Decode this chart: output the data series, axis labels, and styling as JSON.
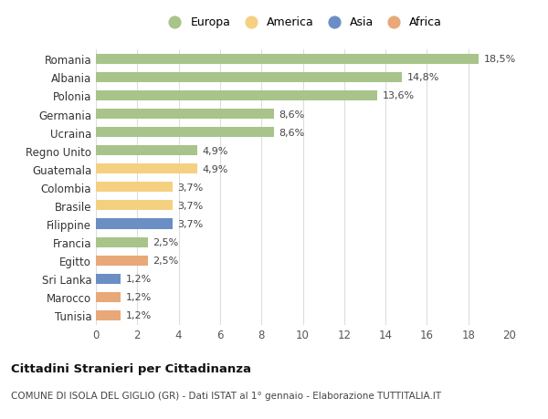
{
  "countries": [
    "Romania",
    "Albania",
    "Polonia",
    "Germania",
    "Ucraina",
    "Regno Unito",
    "Guatemala",
    "Colombia",
    "Brasile",
    "Filippine",
    "Francia",
    "Egitto",
    "Sri Lanka",
    "Marocco",
    "Tunisia"
  ],
  "values": [
    18.5,
    14.8,
    13.6,
    8.6,
    8.6,
    4.9,
    4.9,
    3.7,
    3.7,
    3.7,
    2.5,
    2.5,
    1.2,
    1.2,
    1.2
  ],
  "labels": [
    "18,5%",
    "14,8%",
    "13,6%",
    "8,6%",
    "8,6%",
    "4,9%",
    "4,9%",
    "3,7%",
    "3,7%",
    "3,7%",
    "2,5%",
    "2,5%",
    "1,2%",
    "1,2%",
    "1,2%"
  ],
  "continents": [
    "Europa",
    "Europa",
    "Europa",
    "Europa",
    "Europa",
    "Europa",
    "America",
    "America",
    "America",
    "Asia",
    "Europa",
    "Africa",
    "Asia",
    "Africa",
    "Africa"
  ],
  "colors": {
    "Europa": "#a8c48a",
    "America": "#f5d080",
    "Asia": "#6b8ec4",
    "Africa": "#e8a878"
  },
  "legend_order": [
    "Europa",
    "America",
    "Asia",
    "Africa"
  ],
  "title": "Cittadini Stranieri per Cittadinanza",
  "subtitle": "COMUNE DI ISOLA DEL GIGLIO (GR) - Dati ISTAT al 1° gennaio - Elaborazione TUTTITALIA.IT",
  "xlim": [
    0,
    20
  ],
  "xticks": [
    0,
    2,
    4,
    6,
    8,
    10,
    12,
    14,
    16,
    18,
    20
  ],
  "bg_color": "#ffffff",
  "grid_color": "#dddddd"
}
